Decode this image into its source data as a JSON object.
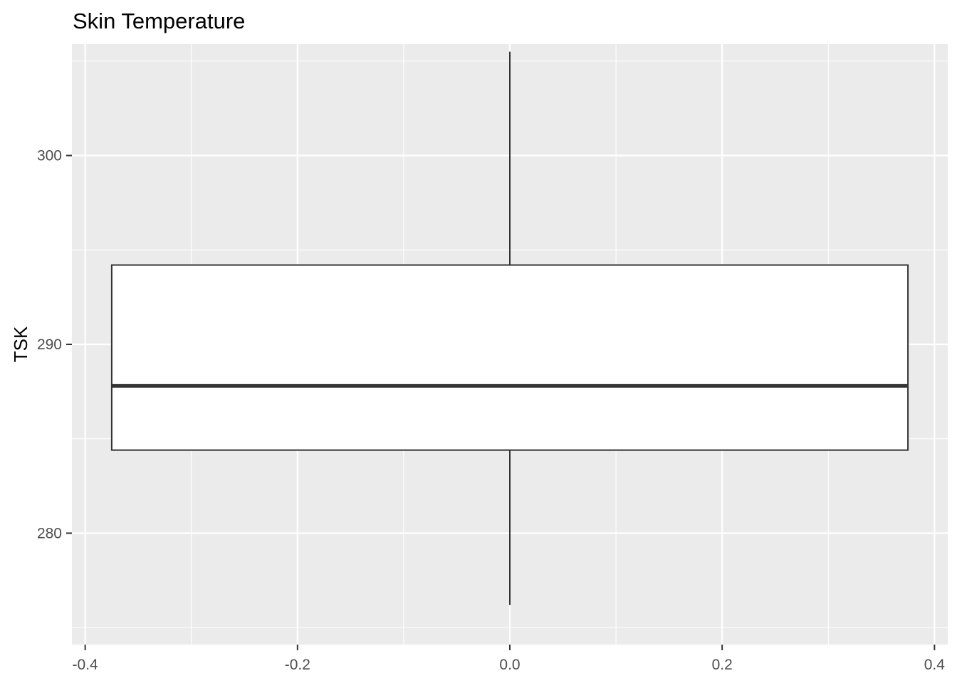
{
  "chart_data": {
    "type": "boxplot",
    "title": "Skin Temperature",
    "xlabel": "",
    "ylabel": "TSK",
    "xlim": [
      -0.4125,
      0.4125
    ],
    "ylim": [
      274.1,
      305.9
    ],
    "x_ticks": [
      -0.4,
      -0.2,
      0.0,
      0.2,
      0.4
    ],
    "x_tick_labels": [
      "-0.4",
      "-0.2",
      "0.0",
      "0.2",
      "0.4"
    ],
    "y_ticks": [
      280,
      290,
      300
    ],
    "y_tick_labels": [
      "280",
      "290",
      "300"
    ],
    "grid": true,
    "box": {
      "x_left": -0.375,
      "x_right": 0.375,
      "x_center": 0.0,
      "whisker_low": 276.2,
      "q1": 284.4,
      "median": 287.8,
      "q3": 294.2,
      "whisker_high": 305.5
    },
    "colors": {
      "panel_background": "#ebebeb",
      "grid": "#ffffff",
      "box_fill": "#ffffff",
      "box_stroke": "#333333"
    }
  }
}
